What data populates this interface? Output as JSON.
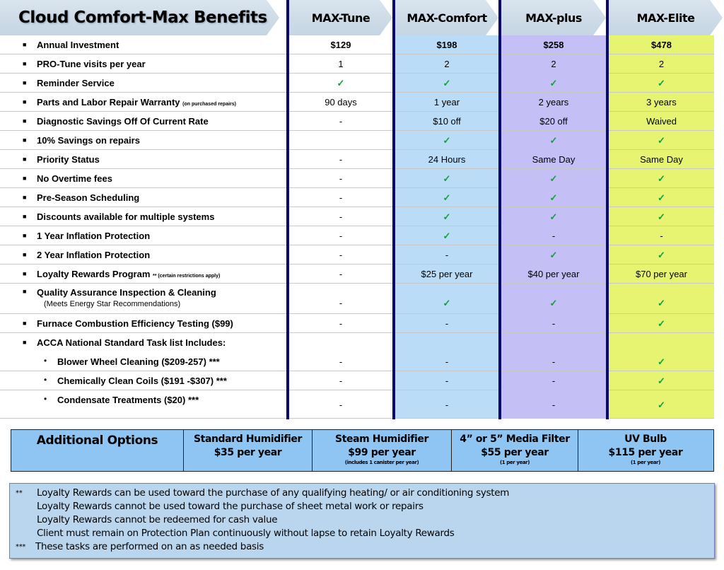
{
  "title": "Cloud Comfort-Max Benefits",
  "plans": [
    "MAX-Tune",
    "MAX-Comfort",
    "MAX-plus",
    "MAX-Elite"
  ],
  "colors": {
    "comfort": "#badcf7",
    "plus": "#c4c0f6",
    "elite": "#e6f471",
    "border": "#0a0a6e",
    "check": "#12a03a",
    "options": "#8ec5f2",
    "notes": "#bad6ee"
  },
  "rows": [
    {
      "label": "Annual Investment",
      "values": [
        "$129",
        "$198",
        "$258",
        "$478"
      ],
      "bold": true
    },
    {
      "label": "PRO-Tune visits per year",
      "values": [
        "1",
        "2",
        "2",
        "2"
      ]
    },
    {
      "label": "Reminder Service",
      "values": [
        "✓",
        "✓",
        "✓",
        "✓"
      ]
    },
    {
      "label": "Parts and Labor Repair Warranty",
      "note": "(on purchased repairs)",
      "values": [
        "90 days",
        "1 year",
        "2 years",
        "3 years"
      ]
    },
    {
      "label": "Diagnostic Savings Off Of Current Rate",
      "values": [
        "-",
        "$10 off",
        "$20 off",
        "Waived"
      ]
    },
    {
      "label": "10% Savings on repairs",
      "values": [
        "",
        "✓",
        "✓",
        "✓"
      ]
    },
    {
      "label": "Priority Status",
      "values": [
        "-",
        "24 Hours",
        "Same Day",
        "Same Day"
      ]
    },
    {
      "label": "No Overtime fees",
      "values": [
        "-",
        "✓",
        "✓",
        "✓"
      ]
    },
    {
      "label": "Pre-Season Scheduling",
      "values": [
        "-",
        "✓",
        "✓",
        "✓"
      ]
    },
    {
      "label": "Discounts available for multiple systems",
      "values": [
        "-",
        "✓",
        "✓",
        "✓"
      ]
    },
    {
      "label": "1 Year Inflation Protection",
      "values": [
        "-",
        "✓",
        "-",
        "-"
      ]
    },
    {
      "label": "2 Year Inflation Protection",
      "values": [
        "-",
        "-",
        "✓",
        "✓"
      ]
    },
    {
      "label": "Loyalty Rewards Program",
      "note": "** (certain restrictions apply)",
      "values": [
        "-",
        "$25 per year",
        "$40 per year",
        "$70 per year"
      ]
    },
    {
      "label": "Quality Assurance Inspection & Cleaning",
      "sub": "(Meets Energy Star Recommendations)",
      "values": [
        "-",
        "✓",
        "✓",
        "✓"
      ]
    },
    {
      "label": "Furnace Combustion Efficiency Testing ($99)",
      "values": [
        "-",
        "-",
        "-",
        "✓"
      ]
    },
    {
      "label": "ACCA National Standard Task list Includes:",
      "values": [
        "",
        "",
        "",
        ""
      ]
    },
    {
      "label": "Blower Wheel Cleaning ($209-257) ***",
      "values": [
        "-",
        "-",
        "-",
        "✓"
      ],
      "child": true
    },
    {
      "label": "Chemically Clean Coils ($191 -$307) ***",
      "values": [
        "-",
        "-",
        "-",
        "✓"
      ],
      "child": true
    },
    {
      "label": "Condensate Treatments  ($20) ***",
      "values": [
        "-",
        "-",
        "-",
        "✓"
      ],
      "child": true
    }
  ],
  "options": {
    "heading": "Additional Options",
    "items": [
      {
        "name": "Standard Humidifier",
        "price": "$35 per year",
        "note": ""
      },
      {
        "name": "Steam Humidifier",
        "price": "$99 per year",
        "note": "(includes 1 canister per year)"
      },
      {
        "name": "4” or 5” Media Filter",
        "price": "$55 per year",
        "note": "(1 per year)"
      },
      {
        "name": "UV Bulb",
        "price": "$115 per year",
        "note": "(1 per year)"
      }
    ]
  },
  "notes": {
    "mark1": "**",
    "mark2": "***",
    "lines": [
      "Loyalty Rewards can be used toward the purchase of any qualifying heating/ or air conditioning system",
      "Loyalty Rewards cannot be used toward the purchase of sheet metal work or repairs",
      "Loyalty Rewards cannot be redeemed for cash value",
      "Client must remain on Protection Plan continuously without lapse to retain Loyalty Rewards",
      "These tasks are performed on an as needed basis"
    ]
  }
}
